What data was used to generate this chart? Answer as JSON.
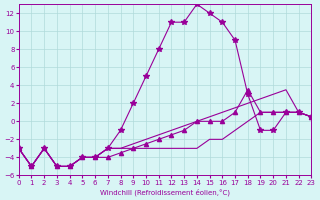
{
  "xlabel": "Windchill (Refroidissement éolien,°C)",
  "background_color": "#d8f5f5",
  "grid_color": "#b0dada",
  "line_color": "#990099",
  "xlim": [
    0,
    23
  ],
  "ylim": [
    -6,
    13
  ],
  "xticks": [
    0,
    1,
    2,
    3,
    4,
    5,
    6,
    7,
    8,
    9,
    10,
    11,
    12,
    13,
    14,
    15,
    16,
    17,
    18,
    19,
    20,
    21,
    22,
    23
  ],
  "yticks": [
    -6,
    -4,
    -2,
    0,
    2,
    4,
    6,
    8,
    10,
    12
  ],
  "series": [
    {
      "x": [
        0,
        1,
        2,
        3,
        4,
        5,
        6,
        7,
        8,
        9,
        10,
        11,
        12,
        13,
        14,
        15,
        16,
        17,
        18,
        19,
        20,
        21,
        22,
        23
      ],
      "y": [
        -3,
        -5,
        -3,
        -5,
        -5,
        -4,
        -4,
        -3,
        -1,
        2,
        5,
        8,
        11,
        11,
        13,
        12,
        11,
        9,
        3,
        -1,
        -1,
        1,
        1,
        0.5
      ],
      "marker": "*",
      "linestyle": "-"
    },
    {
      "x": [
        0,
        1,
        2,
        3,
        4,
        5,
        6,
        7,
        8,
        9,
        10,
        11,
        12,
        13,
        14,
        15,
        16,
        17,
        18,
        19,
        20,
        21,
        22,
        23
      ],
      "y": [
        -3,
        -5,
        -3,
        -5,
        -5,
        -4,
        -4,
        -3,
        -3,
        -3,
        -3,
        -3,
        -3,
        -3,
        -3,
        -2,
        -2,
        -1,
        0,
        1,
        1,
        1,
        1,
        0.5
      ],
      "marker": null,
      "linestyle": "-"
    },
    {
      "x": [
        0,
        1,
        2,
        3,
        4,
        5,
        6,
        7,
        8,
        9,
        10,
        11,
        12,
        13,
        14,
        15,
        16,
        17,
        18,
        19,
        20,
        21,
        22,
        23
      ],
      "y": [
        -3,
        -5,
        -3,
        -5,
        -5,
        -4,
        -4,
        -3,
        -3,
        -2.5,
        -2,
        -1.5,
        -1,
        -0.5,
        0,
        0.5,
        1,
        1.5,
        2,
        2.5,
        3,
        3.5,
        1,
        0.5
      ],
      "marker": null,
      "linestyle": "-"
    },
    {
      "x": [
        0,
        1,
        2,
        3,
        4,
        5,
        6,
        7,
        8,
        9,
        10,
        11,
        12,
        13,
        14,
        15,
        16,
        17,
        18,
        19,
        20,
        21,
        22,
        23
      ],
      "y": [
        -3,
        -5,
        -3,
        -5,
        -5,
        -4,
        -4,
        -4,
        -3.5,
        -3,
        -2.5,
        -2,
        -1.5,
        -1,
        0,
        0,
        0,
        1,
        3.5,
        1,
        1,
        1,
        1,
        0.5
      ],
      "marker": "^",
      "linestyle": "-"
    }
  ]
}
